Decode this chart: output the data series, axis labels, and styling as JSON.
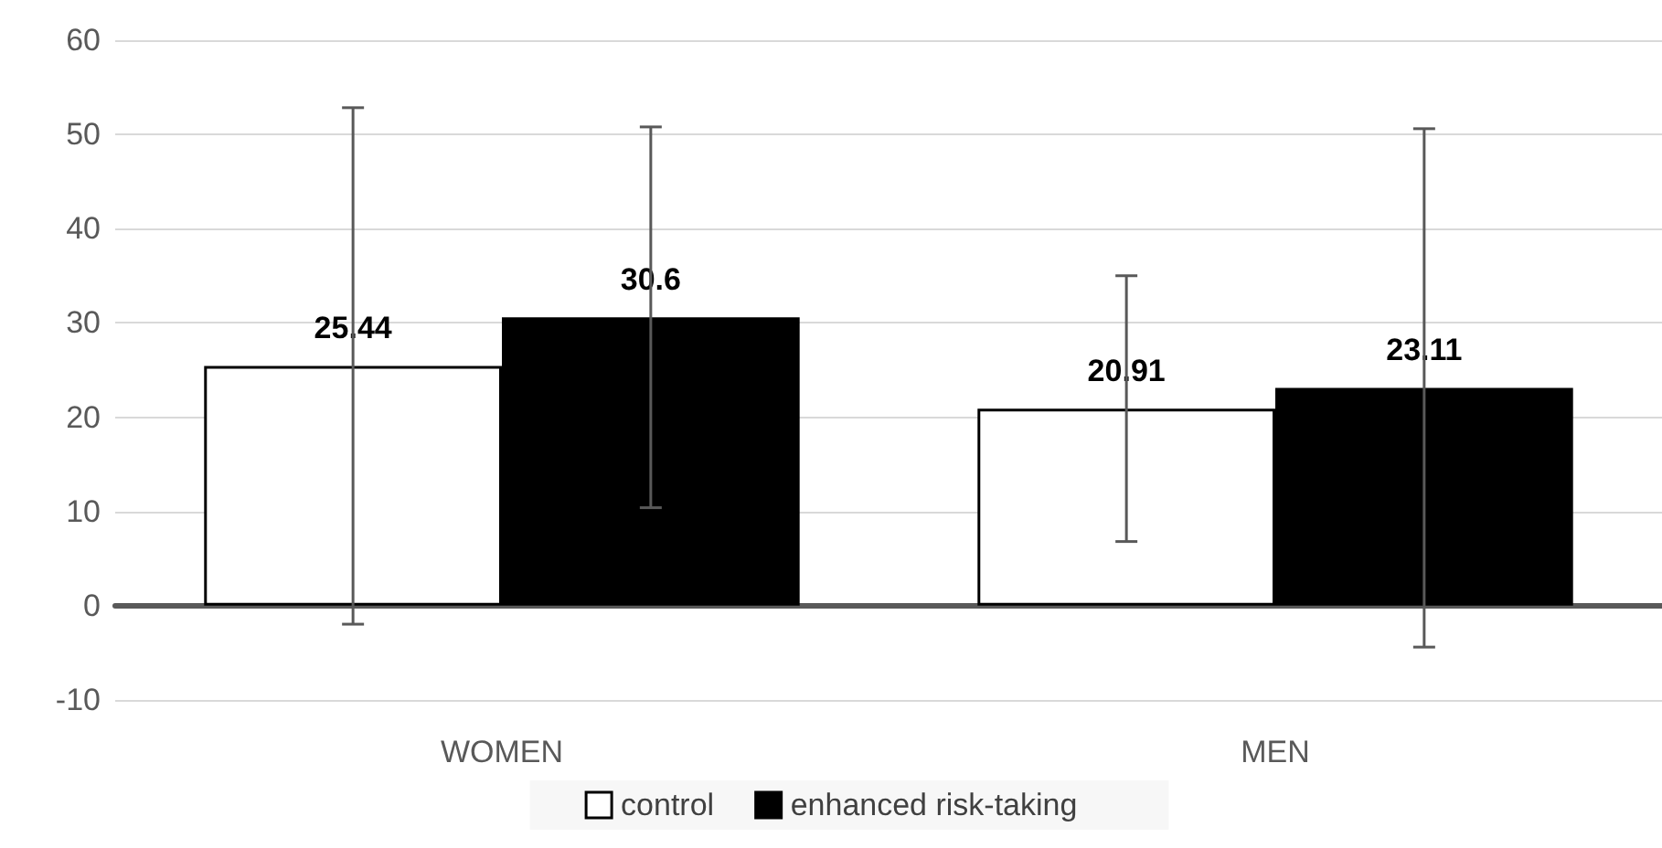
{
  "chart_data": {
    "type": "bar",
    "categories": [
      "WOMEN",
      "MEN"
    ],
    "series": [
      {
        "name": "control",
        "color": "#ffffff",
        "values": [
          25.44,
          20.91
        ],
        "errors": [
          27.4,
          14.1
        ]
      },
      {
        "name": "enhanced risk-taking",
        "color": "#000000",
        "values": [
          30.6,
          23.11
        ],
        "errors": [
          20.2,
          27.5
        ]
      }
    ],
    "ylim": [
      -10,
      60
    ],
    "yticks": [
      -10,
      0,
      10,
      20,
      30,
      40,
      50,
      60
    ],
    "grid": "y",
    "legend": "bottom",
    "data_labels": true
  }
}
